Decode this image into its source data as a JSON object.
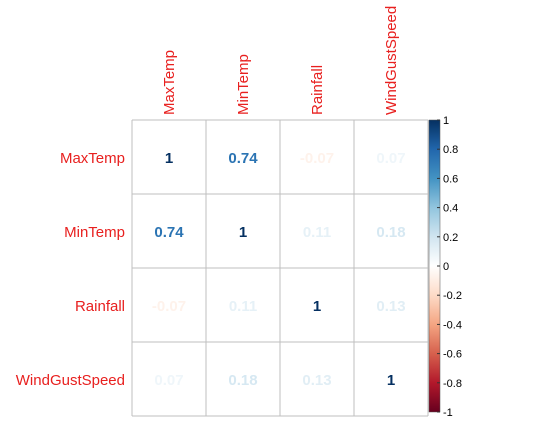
{
  "chart_data": {
    "type": "heatmap",
    "variables": [
      "MaxTemp",
      "MinTemp",
      "Rainfall",
      "WindGustSpeed"
    ],
    "matrix": [
      [
        1,
        0.74,
        -0.07,
        0.07
      ],
      [
        0.74,
        1,
        0.11,
        0.18
      ],
      [
        -0.07,
        0.11,
        1,
        0.13
      ],
      [
        0.07,
        0.18,
        0.13,
        1
      ]
    ],
    "cell_labels": [
      [
        "1",
        "0.74",
        "-0.07",
        "0.07"
      ],
      [
        "0.74",
        "1",
        "0.11",
        "0.18"
      ],
      [
        "-0.07",
        "0.11",
        "1",
        "0.13"
      ],
      [
        "0.07",
        "0.18",
        "0.13",
        "1"
      ]
    ],
    "colorbar": {
      "range": [
        -1,
        1
      ],
      "ticks": [
        "1",
        "0.8",
        "0.6",
        "0.4",
        "0.2",
        "0",
        "-0.2",
        "-0.4",
        "-0.6",
        "-0.8",
        "-1"
      ],
      "position": "right"
    },
    "colors": {
      "label": "#e8201f",
      "negative_strong": "#67001f",
      "negative_mid": "#d6604d",
      "negative_light": "#fddbc7",
      "neutral": "#ffffff",
      "positive_light": "#d1e5f0",
      "positive_mid": "#4393c3",
      "positive_strong": "#053061",
      "grid": "#bfbfbf"
    }
  }
}
